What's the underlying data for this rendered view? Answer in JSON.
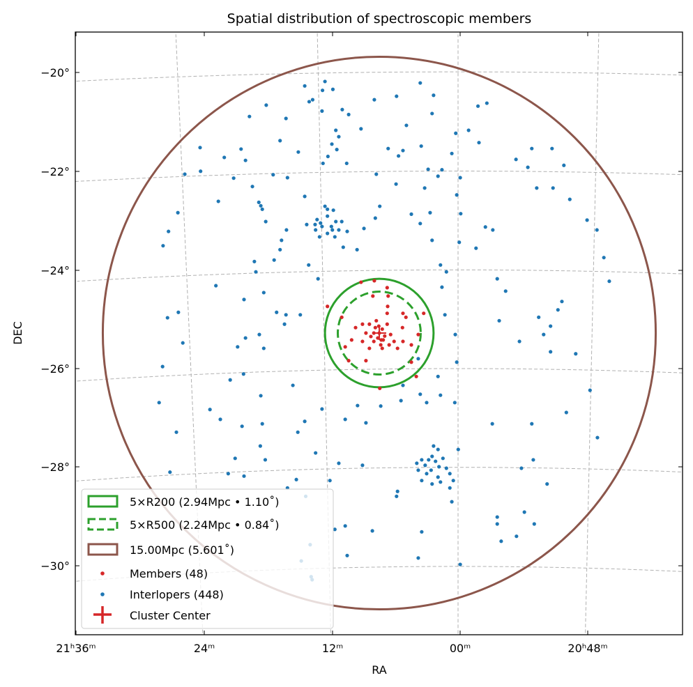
{
  "chart_data": {
    "type": "scatter",
    "title": "Spatial distribution of spectroscopic members",
    "xlabel": "RA",
    "ylabel": "DEC",
    "projection": {
      "type": "gnomonic",
      "ra0_deg": 315.0,
      "dec0_deg": -25.28
    },
    "cluster_center": {
      "ra_deg": 316.77,
      "dec_deg": -25.28
    },
    "grid": true,
    "x_ticks": [
      {
        "ra_deg": 324,
        "label": "21ʰ36ᵐ"
      },
      {
        "ra_deg": 321,
        "label": "24ᵐ"
      },
      {
        "ra_deg": 318,
        "label": "12ᵐ"
      },
      {
        "ra_deg": 315,
        "label": "00ᵐ"
      },
      {
        "ra_deg": 312,
        "label": "20ʰ48ᵐ"
      }
    ],
    "y_ticks": [
      {
        "dec_deg": -20,
        "label": "−20°"
      },
      {
        "dec_deg": -22,
        "label": "−22°"
      },
      {
        "dec_deg": -24,
        "label": "−24°"
      },
      {
        "dec_deg": -26,
        "label": "−26°"
      },
      {
        "dec_deg": -28,
        "label": "−28°"
      },
      {
        "dec_deg": -30,
        "label": "−30°"
      }
    ],
    "circles": [
      {
        "name": "5xR200",
        "radius_deg": 1.1,
        "color": "#2ca02c",
        "style": "solid"
      },
      {
        "name": "5xR500",
        "radius_deg": 0.84,
        "color": "#2ca02c",
        "style": "dashed"
      },
      {
        "name": "15Mpc",
        "radius_deg": 5.601,
        "color": "#8c564b",
        "style": "solid"
      }
    ],
    "legend": {
      "placement": "lower-left",
      "entries": [
        {
          "label": "5×R200 (2.94Mpc • 1.10$^\\circ$)",
          "text": "5×R200 (2.94Mpc • 1.10˚)",
          "color": "#2ca02c"
        },
        {
          "text": "5×R500 (2.24Mpc • 0.84˚)",
          "color": "#2ca02c"
        },
        {
          "text": "15.00Mpc (5.601˚)",
          "color": "#8c564b"
        },
        {
          "text": "Members (48)",
          "color": "#d62728"
        },
        {
          "text": "Interlopers (448)",
          "color": "#1f77b4"
        },
        {
          "text": "Cluster Center",
          "color": "#d62728"
        }
      ]
    },
    "offset_units": "degrees of projected offset from cluster center (east, north)",
    "members_color": "#d62728",
    "interlopers_color": "#1f77b4",
    "members": [
      [
        0,
        0
      ],
      [
        0.08,
        0.11
      ],
      [
        -0.06,
        0.08
      ],
      [
        0.03,
        -0.1
      ],
      [
        -0.08,
        -0.14
      ],
      [
        0.2,
        0.18
      ],
      [
        -0.16,
        0.18
      ],
      [
        0.27,
        0
      ],
      [
        -0.23,
        -0.03
      ],
      [
        0.11,
        -0.17
      ],
      [
        -0.03,
        -0.24
      ],
      [
        0.34,
        -0.17
      ],
      [
        -0.3,
        -0.17
      ],
      [
        -0.16,
        0.4
      ],
      [
        -0.17,
        0.54
      ],
      [
        0.13,
        0.75
      ],
      [
        -0.18,
        0.75
      ],
      [
        0.37,
        1.03
      ],
      [
        0.1,
        1.06
      ],
      [
        -0.16,
        0.92
      ],
      [
        1.05,
        0.54
      ],
      [
        0.76,
        0.32
      ],
      [
        -0.48,
        0.4
      ],
      [
        -0.54,
        0.32
      ],
      [
        -0.9,
        0.4
      ],
      [
        -0.48,
        -0.17
      ],
      [
        -0.47,
        0.11
      ],
      [
        -0.79,
        -0.03
      ],
      [
        -0.65,
        -0.24
      ],
      [
        0.34,
        0.18
      ],
      [
        0.56,
        -0.14
      ],
      [
        0.69,
        -0.28
      ],
      [
        0.27,
        -0.56
      ],
      [
        0.62,
        -0.56
      ],
      [
        -0.01,
        -1.12
      ],
      [
        -0.75,
        -0.88
      ],
      [
        -0.65,
        -0.59
      ],
      [
        0.2,
        -0.31
      ],
      [
        0.06,
        0.25
      ],
      [
        0.17,
        -0.07
      ],
      [
        -0.11,
        -0.06
      ],
      [
        -0.06,
        -0.31
      ],
      [
        0.11,
        0
      ],
      [
        -0.2,
        -0.24
      ],
      [
        -0.37,
        -0.31
      ],
      [
        0.48,
        0.11
      ],
      [
        0.01,
        0.14
      ],
      [
        -0.04,
        -0.14
      ]
    ],
    "interlopers": [
      [
        1.51,
        5.01
      ],
      [
        1.1,
        5.1
      ],
      [
        1.15,
        4.92
      ],
      [
        0.94,
        4.94
      ],
      [
        1.35,
        4.73
      ],
      [
        1.42,
        4.69
      ],
      [
        1.16,
        4.5
      ],
      [
        0.75,
        4.53
      ],
      [
        0.62,
        4.43
      ],
      [
        0.1,
        4.73
      ],
      [
        -0.35,
        4.8
      ],
      [
        -0.83,
        5.07
      ],
      [
        -1.1,
        4.82
      ],
      [
        -1.07,
        4.45
      ],
      [
        -0.55,
        4.21
      ],
      [
        0.37,
        4.14
      ],
      [
        0.88,
        4.11
      ],
      [
        0.82,
        3.98
      ],
      [
        0.96,
        3.83
      ],
      [
        0.86,
        3.72
      ],
      [
        1.04,
        3.58
      ],
      [
        1.14,
        3.44
      ],
      [
        0.66,
        3.44
      ],
      [
        -0.18,
        3.74
      ],
      [
        -0.48,
        3.7
      ],
      [
        -0.85,
        3.79
      ],
      [
        -0.39,
        3.59
      ],
      [
        -0.99,
        3.32
      ],
      [
        -1.27,
        3.31
      ],
      [
        -1.47,
        3.64
      ],
      [
        -1.55,
        4.05
      ],
      [
        -1.81,
        4.11
      ],
      [
        -2.02,
        3.86
      ],
      [
        -2.18,
        4.66
      ],
      [
        -2.0,
        4.6
      ],
      [
        -2.77,
        3.52
      ],
      [
        -3.01,
        3.36
      ],
      [
        -3.09,
        3.74
      ],
      [
        -3.5,
        3.74
      ],
      [
        -3.74,
        3.4
      ],
      [
        -3.52,
        2.94
      ],
      [
        -3.86,
        2.71
      ],
      [
        -4.21,
        2.29
      ],
      [
        -4.41,
        2.09
      ],
      [
        -4.55,
        1.53
      ],
      [
        -4.66,
        1.05
      ],
      [
        -3.19,
        2.94
      ],
      [
        -2.15,
        2.15
      ],
      [
        -2.3,
        2.09
      ],
      [
        -1.96,
        1.72
      ],
      [
        -2.39,
        1.1
      ],
      [
        -2.56,
        0.85
      ],
      [
        -2.43,
        0.25
      ],
      [
        -2.84,
        -0.17
      ],
      [
        -3.23,
        0.32
      ],
      [
        -3.47,
        0.14
      ],
      [
        -3.62,
        0.47
      ],
      [
        -3.7,
        0.64
      ],
      [
        -3.33,
        -0.03
      ],
      [
        -3.47,
        -0.38
      ],
      [
        -3.98,
        -0.42
      ],
      [
        -4.27,
        -1.16
      ],
      [
        -3.79,
        -1.61
      ],
      [
        -4.42,
        -2.12
      ],
      [
        -3.09,
        -1.84
      ],
      [
        -3.12,
        -2.57
      ],
      [
        -2.88,
        -2.74
      ],
      [
        -3.4,
        -3.06
      ],
      [
        -2.39,
        -3.73
      ],
      [
        -2.39,
        -3.87
      ],
      [
        -2.47,
        -4.22
      ],
      [
        -2.94,
        -3.63
      ],
      [
        -2.78,
        -4.12
      ],
      [
        -3.14,
        -3.87
      ],
      [
        -2.29,
        -1.84
      ],
      [
        -1.6,
        -2.36
      ],
      [
        -1.53,
        -1.41
      ],
      [
        -1.57,
        -0.59
      ],
      [
        -1.54,
        -0.03
      ],
      [
        -1.33,
        0.37
      ],
      [
        -1.27,
        0.93
      ],
      [
        -1.24,
        1.38
      ],
      [
        -1.36,
        1.24
      ],
      [
        -1.07,
        1.88
      ],
      [
        -0.83,
        2.22
      ],
      [
        -0.65,
        2.41
      ],
      [
        -1.03,
        2.44
      ],
      [
        -1.62,
        1.84
      ],
      [
        -1.65,
        2.42
      ],
      [
        -1.57,
        2.8
      ],
      [
        -1.64,
        3.15
      ],
      [
        -1.19,
        3.18
      ],
      [
        -0.92,
        2.94
      ],
      [
        -0.34,
        3.02
      ],
      [
        0.06,
        3.22
      ],
      [
        -0.01,
        2.57
      ],
      [
        0.08,
        2.33
      ],
      [
        0.31,
        2.12
      ],
      [
        0.65,
        2.06
      ],
      [
        0.45,
        1.69
      ],
      [
        0.73,
        1.74
      ],
      [
        0.9,
        1.95
      ],
      [
        1.1,
        2.57
      ],
      [
        1.19,
        2.23
      ],
      [
        1.05,
        2.37
      ],
      [
        0.93,
        2.49
      ],
      [
        0.76,
        2.26
      ],
      [
        1.29,
        2.09
      ],
      [
        1.47,
        2.2
      ],
      [
        1.51,
        2.77
      ],
      [
        1.86,
        3.15
      ],
      [
        1.64,
        3.67
      ],
      [
        2.01,
        3.9
      ],
      [
        1.89,
        4.35
      ],
      [
        2.29,
        4.62
      ],
      [
        2.63,
        4.39
      ],
      [
        2.8,
        3.73
      ],
      [
        2.71,
        3.5
      ],
      [
        2.95,
        3.14
      ],
      [
        3.14,
        3.56
      ],
      [
        3.26,
        2.67
      ],
      [
        3.62,
        3.28
      ],
      [
        3.94,
        3.22
      ],
      [
        4.08,
        2.44
      ],
      [
        3.63,
        3.76
      ],
      [
        4.38,
        1.77
      ],
      [
        4.27,
        2.06
      ],
      [
        2.4,
        2.58
      ],
      [
        2.44,
        2.65
      ],
      [
        2.37,
        2.51
      ],
      [
        2.57,
        2.97
      ],
      [
        2.15,
        3.21
      ],
      [
        2.3,
        2.26
      ],
      [
        1.88,
        2.09
      ],
      [
        1.98,
        1.88
      ],
      [
        2.01,
        1.69
      ],
      [
        2.13,
        1.48
      ],
      [
        2.53,
        1.45
      ],
      [
        2.5,
        1.24
      ],
      [
        1.43,
        1.38
      ],
      [
        1.24,
        1.1
      ],
      [
        1.6,
        0.37
      ],
      [
        2.34,
        0.82
      ],
      [
        2.74,
        0.68
      ],
      [
        2.71,
        -0.1
      ],
      [
        1.89,
        0.37
      ],
      [
        1.92,
        0.18
      ],
      [
        2.08,
        0.42
      ],
      [
        2.43,
        -0.03
      ],
      [
        2.34,
        -0.31
      ],
      [
        2.87,
        -0.28
      ],
      [
        3.31,
        0.96
      ],
      [
        4.07,
        0.42
      ],
      [
        4.29,
        0.31
      ],
      [
        3.98,
        -0.2
      ],
      [
        4.39,
        -0.68
      ],
      [
        4.11,
        -2.01
      ],
      [
        4.24,
        -2.82
      ],
      [
        4.46,
        -1.41
      ],
      [
        3.43,
        -1.55
      ],
      [
        3.02,
        -0.95
      ],
      [
        2.75,
        -0.83
      ],
      [
        2.4,
        -1.27
      ],
      [
        2.78,
        -1.89
      ],
      [
        3.22,
        -1.75
      ],
      [
        2.37,
        -1.84
      ],
      [
        2.41,
        -2.29
      ],
      [
        2.31,
        -2.57
      ],
      [
        2.92,
        -2.54
      ],
      [
        2.74,
        -2.9
      ],
      [
        3.06,
        -2.85
      ],
      [
        1.75,
        -1.06
      ],
      [
        1.51,
        -1.79
      ],
      [
        1.65,
        -2.01
      ],
      [
        1.16,
        -1.54
      ],
      [
        1.29,
        -2.43
      ],
      [
        1.68,
        -2.97
      ],
      [
        1.86,
        -3.14
      ],
      [
        1.49,
        -3.31
      ],
      [
        0.82,
        -2.64
      ],
      [
        0.69,
        -1.75
      ],
      [
        0.44,
        -1.47
      ],
      [
        0.27,
        -1.82
      ],
      [
        -0.44,
        -1.37
      ],
      [
        -0.48,
        -1.06
      ],
      [
        -0.83,
        -1.24
      ],
      [
        -0.96,
        -1.41
      ],
      [
        -1.24,
        -1.26
      ],
      [
        -1.19,
        -0.88
      ],
      [
        -0.79,
        -0.52
      ],
      [
        -0.03,
        -1.48
      ],
      [
        0.34,
        -2.68
      ],
      [
        1.0,
        -2.99
      ],
      [
        0.69,
        -3.91
      ],
      [
        0.9,
        -3.98
      ],
      [
        0.14,
        -4.01
      ],
      [
        -0.86,
        -4.03
      ],
      [
        -0.79,
        -4.56
      ],
      [
        -1.64,
        -4.69
      ],
      [
        -1.47,
        -3.42
      ],
      [
        -1.43,
        -3.14
      ],
      [
        -0.37,
        -3.21
      ],
      [
        -0.35,
        -3.31
      ],
      [
        0.65,
        -4.51
      ],
      [
        1.38,
        -4.94
      ],
      [
        1.58,
        -4.62
      ],
      [
        1.4,
        -4.29
      ],
      [
        1.36,
        -5.0
      ],
      [
        -0.86,
        -2.57
      ],
      [
        -0.93,
        -2.68
      ],
      [
        -1.0,
        -2.57
      ],
      [
        -1.07,
        -2.5
      ],
      [
        -1.14,
        -2.6
      ],
      [
        -1.21,
        -2.71
      ],
      [
        -1.29,
        -2.54
      ],
      [
        -1.05,
        -2.78
      ],
      [
        -0.96,
        -2.85
      ],
      [
        -1.19,
        -2.92
      ],
      [
        -1.36,
        -2.74
      ],
      [
        -1.43,
        -2.85
      ],
      [
        -0.79,
        -2.78
      ],
      [
        -0.86,
        -2.99
      ],
      [
        -1.07,
        -3.06
      ],
      [
        -1.24,
        -3.02
      ],
      [
        -1.5,
        -2.99
      ],
      [
        -1.1,
        -2.29
      ],
      [
        -1.19,
        -2.36
      ],
      [
        -0.76,
        -2.64
      ],
      [
        1.26,
        2.3
      ],
      [
        1.16,
        2.16
      ],
      [
        0.97,
        2.16
      ],
      [
        0.88,
        2.26
      ],
      [
        1.05,
        2.02
      ],
      [
        0.95,
        2.09
      ],
      [
        1.21,
        1.95
      ],
      [
        0.82,
        2.09
      ],
      [
        1.3,
        2.2
      ],
      [
        1.05,
        2.51
      ]
    ]
  }
}
